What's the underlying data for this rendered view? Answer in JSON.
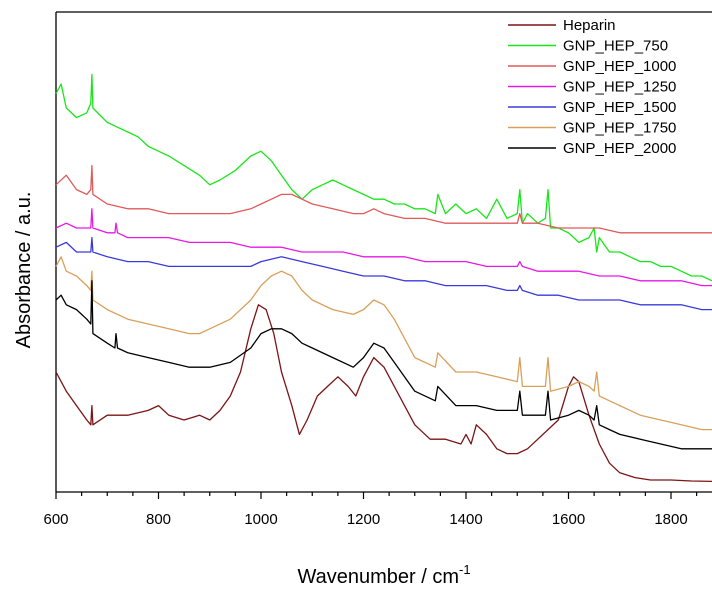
{
  "chart_data": {
    "type": "line",
    "title": "",
    "xlabel": "Wavenumber / cm",
    "xlabel_superscript": "-1",
    "ylabel": "Absorbance / a.u.",
    "xlim": [
      600,
      1880
    ],
    "ylim": [
      0,
      100
    ],
    "x_ticks": [
      600,
      800,
      1000,
      1200,
      1400,
      1600,
      1800
    ],
    "x_tick_labels": [
      "600",
      "800",
      "1000",
      "1200",
      "1400",
      "1600",
      "1800"
    ],
    "y_tick_labels_shown": false,
    "grid": false,
    "legend_position": "top-right",
    "series": [
      {
        "name": "Heparin",
        "color": "#7b1416",
        "x": [
          600,
          620,
          640,
          660,
          668,
          670,
          672,
          700,
          740,
          780,
          800,
          820,
          850,
          880,
          900,
          920,
          940,
          960,
          980,
          995,
          1010,
          1025,
          1040,
          1060,
          1075,
          1090,
          1110,
          1130,
          1150,
          1170,
          1185,
          1200,
          1220,
          1240,
          1260,
          1280,
          1300,
          1330,
          1360,
          1390,
          1400,
          1410,
          1420,
          1440,
          1460,
          1480,
          1500,
          1520,
          1540,
          1560,
          1580,
          1600,
          1610,
          1620,
          1640,
          1660,
          1680,
          1700,
          1730,
          1760,
          1800,
          1840,
          1880
        ],
        "values": [
          25,
          21,
          18,
          15,
          14,
          18,
          14,
          16,
          16,
          17,
          18,
          16,
          15,
          16,
          15,
          17,
          20,
          25,
          34,
          39,
          38,
          33,
          25,
          18,
          12,
          15,
          20,
          22,
          24,
          22,
          20,
          24,
          28,
          26,
          22,
          18,
          14,
          11,
          11,
          10,
          12,
          10,
          14,
          12,
          9,
          8,
          8,
          9,
          11,
          13,
          15,
          22,
          24,
          23,
          16,
          10,
          6,
          4,
          3,
          2.5,
          2.5,
          2.3,
          2.2
        ]
      },
      {
        "name": "GNP_HEP_750",
        "color": "#19e619",
        "x": [
          600,
          610,
          620,
          640,
          660,
          668,
          670,
          672,
          700,
          720,
          740,
          760,
          780,
          800,
          820,
          850,
          880,
          900,
          920,
          950,
          980,
          1000,
          1020,
          1040,
          1060,
          1070,
          1080,
          1100,
          1120,
          1140,
          1160,
          1180,
          1200,
          1220,
          1240,
          1260,
          1280,
          1300,
          1320,
          1340,
          1345,
          1360,
          1380,
          1400,
          1420,
          1440,
          1460,
          1480,
          1500,
          1505,
          1510,
          1520,
          1540,
          1555,
          1560,
          1565,
          1580,
          1600,
          1620,
          1640,
          1650,
          1655,
          1660,
          1680,
          1700,
          1720,
          1740,
          1760,
          1780,
          1800,
          1820,
          1840,
          1860,
          1880
        ],
        "values": [
          83,
          85,
          80,
          78,
          79,
          81,
          87,
          80,
          77,
          76,
          75,
          74,
          72,
          71,
          70,
          68,
          66,
          64,
          65,
          67,
          70,
          71,
          69,
          66,
          63,
          62,
          61,
          63,
          64,
          65,
          64,
          63,
          62,
          61,
          61,
          60,
          60,
          59,
          59,
          58,
          62,
          58,
          60,
          58,
          59,
          57,
          61,
          57,
          58,
          63,
          56,
          58,
          56,
          57,
          63,
          55,
          55,
          54,
          52,
          53,
          55,
          50,
          53,
          50,
          50,
          49,
          48,
          48,
          47,
          47,
          46,
          45,
          45,
          44
        ]
      },
      {
        "name": "GNP_HEP_1000",
        "color": "#e05a5a",
        "x": [
          600,
          620,
          640,
          660,
          668,
          670,
          672,
          700,
          740,
          780,
          820,
          860,
          900,
          940,
          980,
          1000,
          1020,
          1040,
          1060,
          1080,
          1100,
          1140,
          1180,
          1200,
          1220,
          1240,
          1280,
          1320,
          1360,
          1400,
          1440,
          1480,
          1500,
          1505,
          1510,
          1540,
          1580,
          1620,
          1660,
          1700,
          1740,
          1780,
          1820,
          1860,
          1880
        ],
        "values": [
          64,
          66,
          63,
          62,
          63,
          68,
          62,
          60,
          59,
          59,
          58,
          58,
          58,
          58,
          59,
          60,
          61,
          62,
          62,
          61,
          60,
          59,
          58,
          58,
          59,
          58,
          57,
          57,
          56,
          56,
          56,
          56,
          56,
          58,
          56,
          56,
          55,
          55,
          55,
          54,
          54,
          54,
          54,
          54,
          54
        ]
      },
      {
        "name": "GNP_HEP_1250",
        "color": "#e619e6",
        "x": [
          600,
          620,
          640,
          660,
          668,
          670,
          672,
          700,
          715,
          717,
          720,
          740,
          780,
          820,
          860,
          900,
          940,
          980,
          1000,
          1040,
          1080,
          1120,
          1160,
          1200,
          1240,
          1280,
          1320,
          1360,
          1400,
          1440,
          1480,
          1500,
          1505,
          1510,
          1540,
          1580,
          1620,
          1660,
          1700,
          1740,
          1780,
          1820,
          1860,
          1880
        ],
        "values": [
          55,
          56,
          55,
          55,
          55,
          59,
          55,
          54,
          54,
          56,
          54,
          53,
          53,
          53,
          52,
          52,
          52,
          51,
          51,
          51,
          50,
          50,
          50,
          49,
          49,
          49,
          48,
          48,
          48,
          47,
          47,
          47,
          48,
          47,
          46,
          46,
          46,
          45,
          45,
          44,
          44,
          44,
          43,
          43
        ]
      },
      {
        "name": "GNP_HEP_1500",
        "color": "#3a3adc",
        "x": [
          600,
          620,
          640,
          660,
          668,
          670,
          672,
          700,
          740,
          780,
          820,
          860,
          900,
          940,
          980,
          1000,
          1040,
          1080,
          1120,
          1160,
          1200,
          1240,
          1280,
          1320,
          1360,
          1400,
          1440,
          1480,
          1500,
          1505,
          1510,
          1540,
          1580,
          1620,
          1660,
          1700,
          1740,
          1780,
          1820,
          1860,
          1880
        ],
        "values": [
          51,
          52,
          50,
          50,
          50,
          53,
          50,
          49,
          48,
          48,
          47,
          47,
          47,
          47,
          47,
          48,
          49,
          48,
          47,
          46,
          45,
          45,
          44,
          44,
          43,
          43,
          43,
          42,
          42,
          43,
          42,
          41,
          41,
          40,
          40,
          40,
          39,
          39,
          39,
          38,
          38
        ]
      },
      {
        "name": "GNP_HEP_1750",
        "color": "#d9a05b",
        "x": [
          600,
          610,
          620,
          640,
          660,
          668,
          670,
          672,
          700,
          740,
          780,
          820,
          860,
          880,
          900,
          940,
          980,
          1000,
          1020,
          1040,
          1060,
          1080,
          1100,
          1140,
          1180,
          1200,
          1220,
          1240,
          1260,
          1280,
          1300,
          1340,
          1345,
          1380,
          1420,
          1460,
          1500,
          1505,
          1510,
          1540,
          1555,
          1560,
          1565,
          1600,
          1620,
          1640,
          1650,
          1655,
          1660,
          1680,
          1700,
          1740,
          1780,
          1820,
          1860,
          1880
        ],
        "values": [
          47,
          49,
          46,
          45,
          43,
          42,
          46,
          40,
          38,
          36,
          35,
          34,
          33,
          33,
          34,
          36,
          40,
          43,
          45,
          46,
          45,
          42,
          40,
          38,
          37,
          38,
          40,
          39,
          36,
          32,
          28,
          26,
          29,
          25,
          25,
          24,
          23,
          28,
          22,
          22,
          22,
          28,
          21,
          22,
          23,
          22,
          21,
          25,
          20,
          19,
          18,
          16,
          15,
          14,
          13,
          13
        ]
      },
      {
        "name": "GNP_HEP_2000",
        "color": "#000000",
        "x": [
          600,
          610,
          620,
          640,
          660,
          668,
          670,
          672,
          700,
          715,
          717,
          720,
          740,
          780,
          820,
          860,
          900,
          940,
          980,
          1000,
          1020,
          1040,
          1060,
          1080,
          1100,
          1140,
          1180,
          1200,
          1220,
          1240,
          1260,
          1280,
          1300,
          1340,
          1345,
          1380,
          1420,
          1460,
          1500,
          1505,
          1510,
          1540,
          1555,
          1560,
          1565,
          1600,
          1620,
          1640,
          1650,
          1655,
          1660,
          1680,
          1700,
          1740,
          1780,
          1820,
          1860,
          1880
        ],
        "values": [
          40,
          41,
          39,
          38,
          36,
          35,
          44,
          33,
          31,
          30,
          33,
          30,
          29,
          28,
          27,
          26,
          26,
          27,
          30,
          33,
          34,
          34,
          33,
          31,
          30,
          28,
          26,
          28,
          31,
          30,
          27,
          24,
          21,
          19,
          22,
          18,
          18,
          17,
          17,
          21,
          16,
          16,
          16,
          21,
          15,
          16,
          17,
          16,
          15,
          18,
          14,
          13,
          12,
          11,
          10,
          9,
          9,
          9
        ]
      }
    ]
  }
}
